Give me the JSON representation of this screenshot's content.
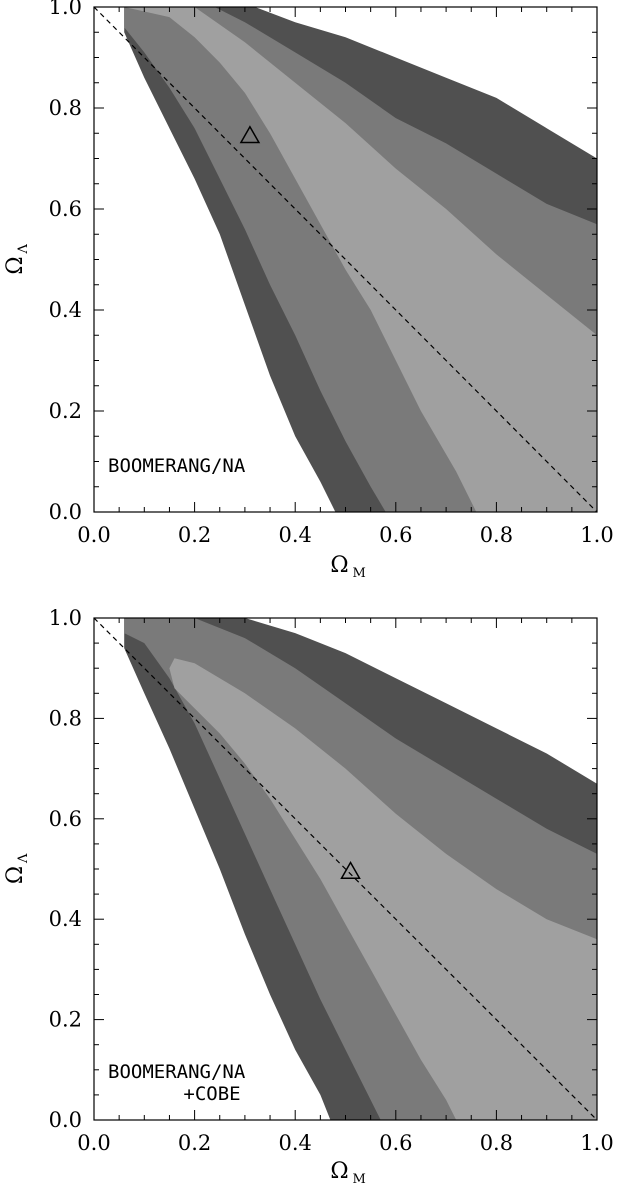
{
  "chart_data": [
    {
      "type": "area",
      "panel": "top",
      "xlabel": {
        "symbol": "Ω",
        "subscript": "M"
      },
      "ylabel": {
        "symbol": "Ω",
        "subscript": "Λ"
      },
      "xlim": [
        0.0,
        1.0
      ],
      "ylim": [
        0.0,
        1.0
      ],
      "xticks": [
        "0.0",
        "0.2",
        "0.4",
        "0.6",
        "0.8",
        "1.0"
      ],
      "yticks": [
        "0.0",
        "0.2",
        "0.4",
        "0.6",
        "0.8",
        "1.0"
      ],
      "annotation": [
        "BOOMERANG/NA"
      ],
      "best_fit": {
        "x": 0.31,
        "y": 0.745
      },
      "flat_line": [
        [
          0.0,
          1.0
        ],
        [
          1.0,
          0.0
        ]
      ],
      "contours": [
        {
          "level": "outer",
          "color": "#505050",
          "points": [
            [
              0.06,
              1.0
            ],
            [
              0.32,
              1.0
            ],
            [
              0.4,
              0.97
            ],
            [
              0.5,
              0.94
            ],
            [
              0.6,
              0.9
            ],
            [
              0.7,
              0.86
            ],
            [
              0.8,
              0.82
            ],
            [
              0.9,
              0.76
            ],
            [
              1.0,
              0.7
            ],
            [
              1.0,
              0.0
            ],
            [
              0.48,
              0.0
            ],
            [
              0.45,
              0.06
            ],
            [
              0.4,
              0.15
            ],
            [
              0.35,
              0.27
            ],
            [
              0.3,
              0.41
            ],
            [
              0.25,
              0.55
            ],
            [
              0.2,
              0.66
            ],
            [
              0.15,
              0.76
            ],
            [
              0.1,
              0.86
            ],
            [
              0.06,
              0.95
            ]
          ]
        },
        {
          "level": "middle",
          "color": "#7a7a7a",
          "points": [
            [
              0.06,
              1.0
            ],
            [
              0.24,
              1.0
            ],
            [
              0.3,
              0.97
            ],
            [
              0.4,
              0.91
            ],
            [
              0.5,
              0.85
            ],
            [
              0.6,
              0.78
            ],
            [
              0.7,
              0.73
            ],
            [
              0.8,
              0.67
            ],
            [
              0.9,
              0.61
            ],
            [
              1.0,
              0.57
            ],
            [
              1.0,
              0.0
            ],
            [
              0.58,
              0.0
            ],
            [
              0.55,
              0.05
            ],
            [
              0.5,
              0.14
            ],
            [
              0.45,
              0.24
            ],
            [
              0.4,
              0.35
            ],
            [
              0.35,
              0.45
            ],
            [
              0.3,
              0.56
            ],
            [
              0.25,
              0.66
            ],
            [
              0.2,
              0.76
            ],
            [
              0.15,
              0.84
            ],
            [
              0.1,
              0.91
            ],
            [
              0.06,
              0.96
            ]
          ]
        },
        {
          "level": "inner",
          "color": "#a0a0a0",
          "points": [
            [
              0.06,
              1.0
            ],
            [
              0.2,
              1.0
            ],
            [
              0.3,
              0.93
            ],
            [
              0.4,
              0.85
            ],
            [
              0.5,
              0.77
            ],
            [
              0.6,
              0.68
            ],
            [
              0.7,
              0.6
            ],
            [
              0.8,
              0.51
            ],
            [
              0.9,
              0.43
            ],
            [
              1.0,
              0.35
            ],
            [
              1.0,
              0.0
            ],
            [
              0.76,
              0.0
            ],
            [
              0.72,
              0.08
            ],
            [
              0.65,
              0.2
            ],
            [
              0.6,
              0.3
            ],
            [
              0.55,
              0.4
            ],
            [
              0.5,
              0.48
            ],
            [
              0.45,
              0.57
            ],
            [
              0.4,
              0.66
            ],
            [
              0.35,
              0.75
            ],
            [
              0.3,
              0.83
            ],
            [
              0.25,
              0.89
            ],
            [
              0.2,
              0.94
            ],
            [
              0.15,
              0.98
            ],
            [
              0.06,
              1.0
            ]
          ]
        }
      ]
    },
    {
      "type": "area",
      "panel": "bottom",
      "xlabel": {
        "symbol": "Ω",
        "subscript": "M"
      },
      "ylabel": {
        "symbol": "Ω",
        "subscript": "Λ"
      },
      "xlim": [
        0.0,
        1.0
      ],
      "ylim": [
        0.0,
        1.0
      ],
      "xticks": [
        "0.0",
        "0.2",
        "0.4",
        "0.6",
        "0.8",
        "1.0"
      ],
      "yticks": [
        "0.0",
        "0.2",
        "0.4",
        "0.6",
        "0.8",
        "1.0"
      ],
      "annotation": [
        "BOOMERANG/NA",
        "+COBE"
      ],
      "best_fit": {
        "x": 0.51,
        "y": 0.495
      },
      "flat_line": [
        [
          0.0,
          1.0
        ],
        [
          1.0,
          0.0
        ]
      ],
      "contours": [
        {
          "level": "outer",
          "color": "#505050",
          "points": [
            [
              0.06,
              1.0
            ],
            [
              0.3,
              1.0
            ],
            [
              0.4,
              0.97
            ],
            [
              0.5,
              0.93
            ],
            [
              0.6,
              0.88
            ],
            [
              0.7,
              0.83
            ],
            [
              0.8,
              0.78
            ],
            [
              0.9,
              0.73
            ],
            [
              1.0,
              0.67
            ],
            [
              1.0,
              0.0
            ],
            [
              0.47,
              0.0
            ],
            [
              0.45,
              0.05
            ],
            [
              0.4,
              0.14
            ],
            [
              0.35,
              0.25
            ],
            [
              0.3,
              0.37
            ],
            [
              0.25,
              0.5
            ],
            [
              0.2,
              0.62
            ],
            [
              0.15,
              0.74
            ],
            [
              0.1,
              0.85
            ],
            [
              0.06,
              0.94
            ]
          ]
        },
        {
          "level": "middle",
          "color": "#7a7a7a",
          "points": [
            [
              0.06,
              1.0
            ],
            [
              0.2,
              1.0
            ],
            [
              0.3,
              0.96
            ],
            [
              0.4,
              0.9
            ],
            [
              0.5,
              0.83
            ],
            [
              0.6,
              0.76
            ],
            [
              0.7,
              0.7
            ],
            [
              0.8,
              0.64
            ],
            [
              0.9,
              0.58
            ],
            [
              1.0,
              0.53
            ],
            [
              1.0,
              0.0
            ],
            [
              0.57,
              0.0
            ],
            [
              0.54,
              0.06
            ],
            [
              0.5,
              0.14
            ],
            [
              0.45,
              0.24
            ],
            [
              0.4,
              0.35
            ],
            [
              0.35,
              0.46
            ],
            [
              0.3,
              0.57
            ],
            [
              0.25,
              0.68
            ],
            [
              0.2,
              0.79
            ],
            [
              0.15,
              0.88
            ],
            [
              0.1,
              0.95
            ],
            [
              0.06,
              0.97
            ]
          ]
        },
        {
          "level": "inner",
          "color": "#a0a0a0",
          "points": [
            [
              0.16,
              0.92
            ],
            [
              0.2,
              0.91
            ],
            [
              0.3,
              0.85
            ],
            [
              0.4,
              0.78
            ],
            [
              0.5,
              0.7
            ],
            [
              0.6,
              0.61
            ],
            [
              0.7,
              0.53
            ],
            [
              0.8,
              0.46
            ],
            [
              0.9,
              0.4
            ],
            [
              1.0,
              0.36
            ],
            [
              1.0,
              0.0
            ],
            [
              0.72,
              0.0
            ],
            [
              0.7,
              0.04
            ],
            [
              0.65,
              0.12
            ],
            [
              0.6,
              0.21
            ],
            [
              0.55,
              0.3
            ],
            [
              0.5,
              0.39
            ],
            [
              0.45,
              0.48
            ],
            [
              0.4,
              0.56
            ],
            [
              0.35,
              0.64
            ],
            [
              0.3,
              0.71
            ],
            [
              0.25,
              0.77
            ],
            [
              0.2,
              0.82
            ],
            [
              0.16,
              0.86
            ],
            [
              0.15,
              0.9
            ]
          ]
        }
      ]
    }
  ]
}
